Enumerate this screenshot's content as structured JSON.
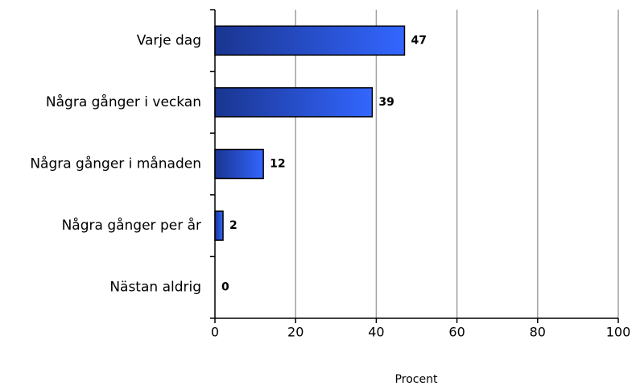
{
  "chart_data": {
    "type": "bar",
    "orientation": "horizontal",
    "x_label": "Procent",
    "categories": [
      "Varje dag",
      "Några gånger i veckan",
      "Några gånger i månaden",
      "Några gånger per år",
      "Nästan aldrig"
    ],
    "values": [
      47,
      39,
      12,
      2,
      0
    ],
    "color": "#3366ff",
    "xlim": [
      0,
      100
    ],
    "xticks": [
      0,
      20,
      40,
      60,
      80,
      100
    ],
    "grid": true
  }
}
